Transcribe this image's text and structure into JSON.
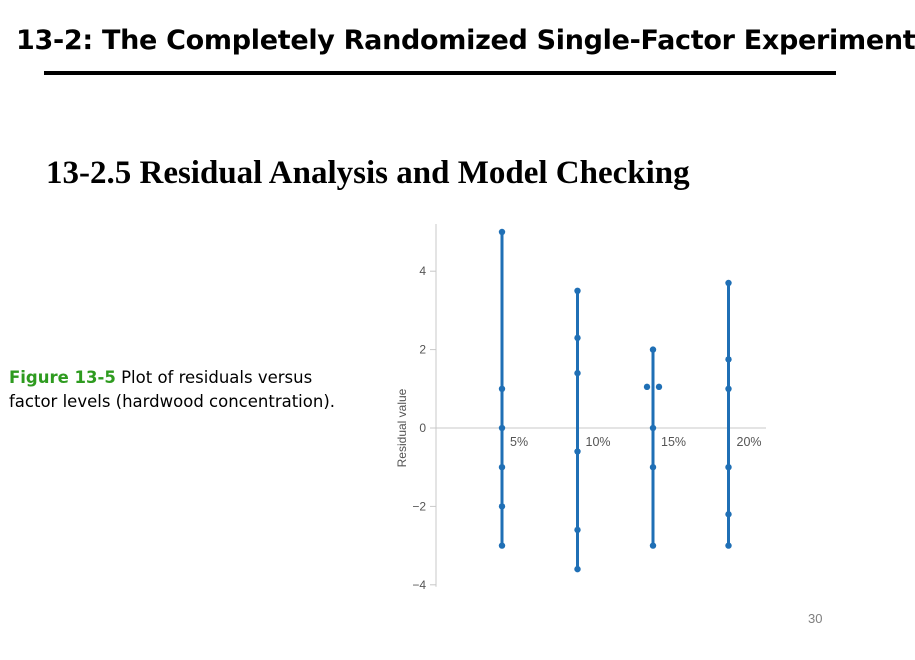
{
  "slide": {
    "title": "13-2: The Completely Randomized Single-Factor Experiment",
    "section_heading": "13-2.5 Residual Analysis and Model Checking",
    "figure_label": "Figure 13-5",
    "figure_caption": " Plot of residuals versus factor levels (hardwood concentration).",
    "page_number": "30"
  },
  "colors": {
    "accent_green": "#2e9b1f",
    "series_blue": "#1f6fb5",
    "axis_gray": "#c8c8c8"
  },
  "chart_data": {
    "type": "scatter",
    "title": "",
    "xlabel": "",
    "ylabel": "Residual value",
    "ylim": [
      -4,
      5
    ],
    "yticks": [
      4,
      2,
      0,
      -2,
      -4
    ],
    "ytick_labels": [
      "4",
      "2",
      "0",
      "−2",
      "−4"
    ],
    "grid": false,
    "categories": [
      "5%",
      "10%",
      "15%",
      "20%"
    ],
    "groups": [
      {
        "category": "5%",
        "range": [
          -3.0,
          5.0
        ],
        "points": [
          {
            "x": "5%",
            "y": 5.0
          },
          {
            "x": "5%",
            "y": 1.0
          },
          {
            "x": "5%",
            "y": 0.0
          },
          {
            "x": "5%",
            "y": -1.0
          },
          {
            "x": "5%",
            "y": -2.0
          },
          {
            "x": "5%",
            "y": -3.0
          }
        ]
      },
      {
        "category": "10%",
        "range": [
          -3.6,
          3.5
        ],
        "points": [
          {
            "x": "10%",
            "y": 3.5
          },
          {
            "x": "10%",
            "y": 2.3
          },
          {
            "x": "10%",
            "y": 1.4
          },
          {
            "x": "10%",
            "y": -0.6
          },
          {
            "x": "10%",
            "y": -2.6
          },
          {
            "x": "10%",
            "y": -3.6
          }
        ]
      },
      {
        "category": "15%",
        "range": [
          -3.0,
          2.0
        ],
        "points": [
          {
            "x": "15%",
            "y": 2.0
          },
          {
            "x": "15%",
            "y": 1.05,
            "jitter": -1
          },
          {
            "x": "15%",
            "y": 1.05,
            "jitter": 1
          },
          {
            "x": "15%",
            "y": 0.0
          },
          {
            "x": "15%",
            "y": -1.0
          },
          {
            "x": "15%",
            "y": -3.0
          }
        ]
      },
      {
        "category": "20%",
        "range": [
          -3.0,
          3.7
        ],
        "points": [
          {
            "x": "20%",
            "y": 3.7
          },
          {
            "x": "20%",
            "y": 1.75
          },
          {
            "x": "20%",
            "y": 1.0
          },
          {
            "x": "20%",
            "y": -1.0
          },
          {
            "x": "20%",
            "y": -2.2
          },
          {
            "x": "20%",
            "y": -3.0
          }
        ]
      }
    ]
  }
}
